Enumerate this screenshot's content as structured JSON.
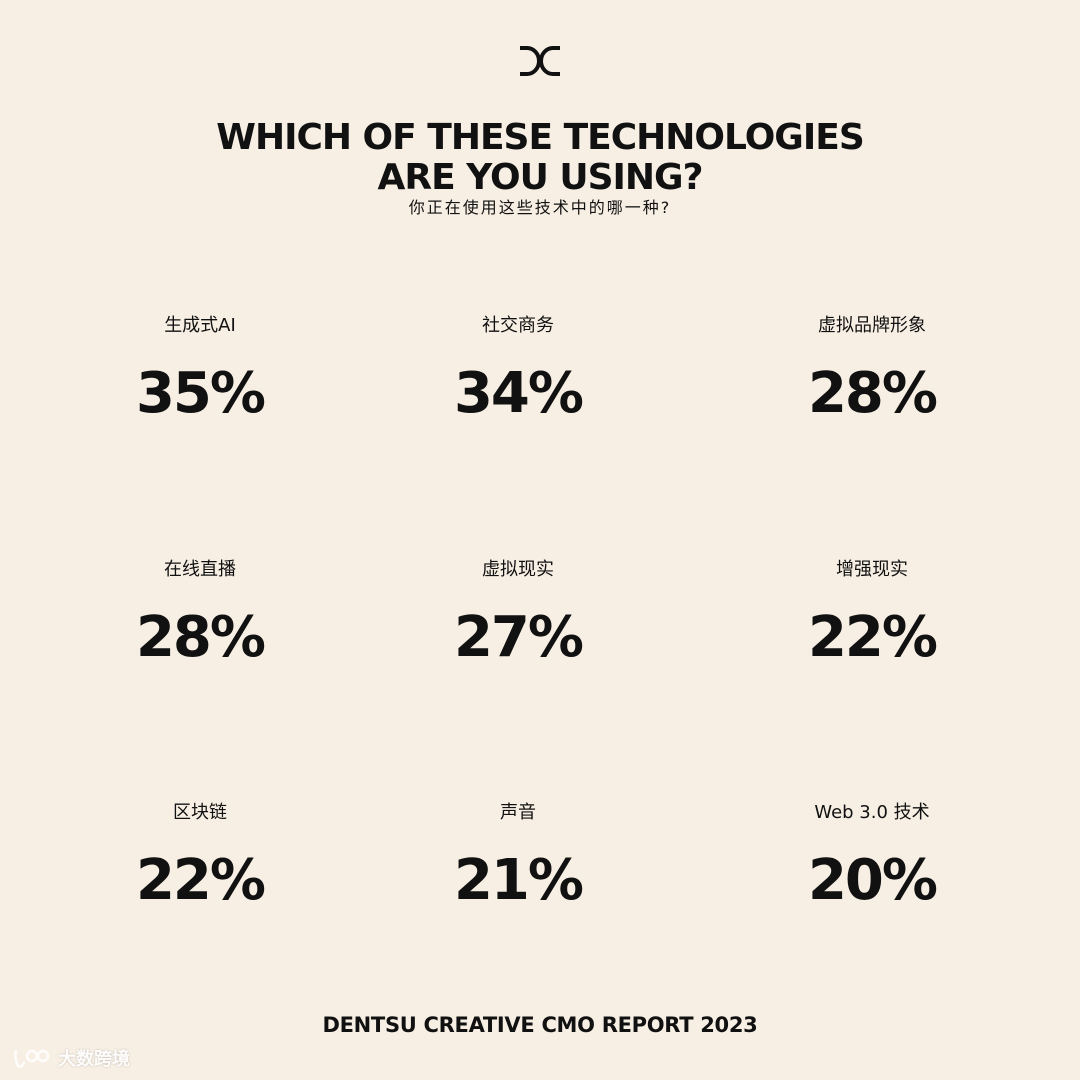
{
  "title_line1": "WHICH OF THESE TECHNOLOGIES",
  "title_line2": "ARE YOU USING?",
  "subtitle": "你正在使用这些技术中的哪一种?",
  "items": [
    {
      "label": "生成式AI",
      "value": "35%"
    },
    {
      "label": "社交商务",
      "value": "34%"
    },
    {
      "label": "虚拟品牌形象",
      "value": "28%"
    },
    {
      "label": "在线直播",
      "value": "28%"
    },
    {
      "label": "虚拟现实",
      "value": "27%"
    },
    {
      "label": "增强现实",
      "value": "22%"
    },
    {
      "label": "区块链",
      "value": "22%"
    },
    {
      "label": "声音",
      "value": "21%"
    },
    {
      "label": "Web 3.0 技术",
      "value": "20%"
    }
  ],
  "footer": "DENTSU CREATIVE CMO REPORT 2023",
  "watermark_text": "大数跨境",
  "logo_icon": "dc-logo-icon",
  "colors": {
    "background": "#f7efe4",
    "text": "#111111"
  }
}
